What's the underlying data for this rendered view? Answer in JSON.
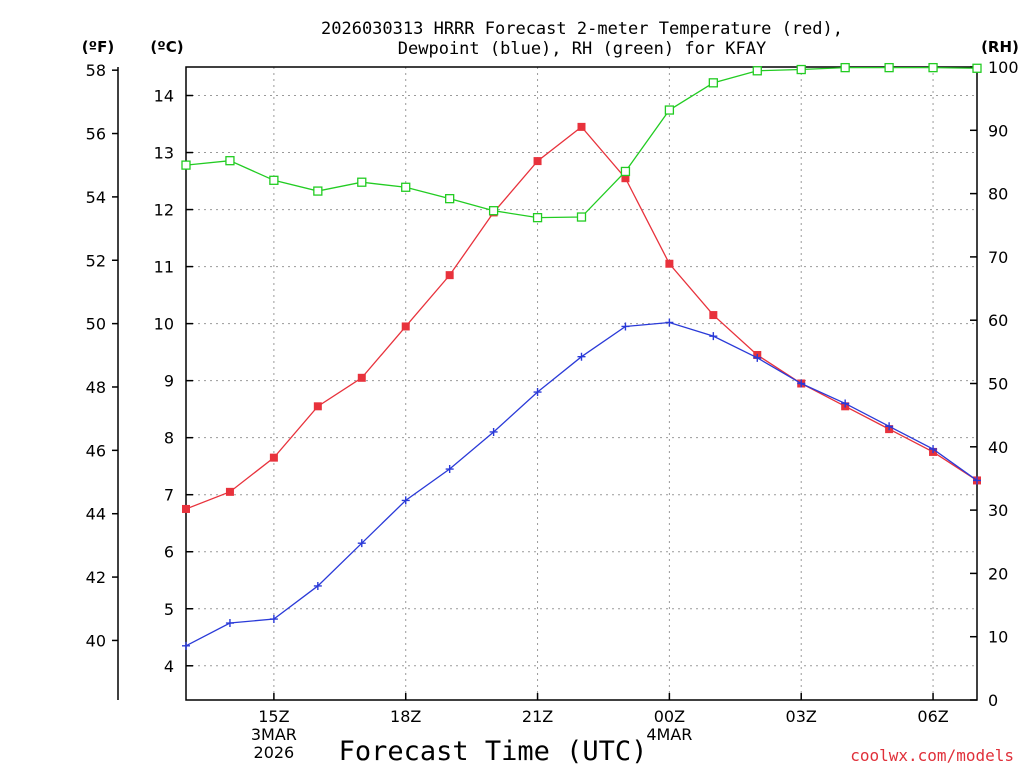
{
  "chart_data": {
    "type": "line",
    "title_line1": "2026030313 HRRR Forecast 2-meter Temperature (red),",
    "title_line2": "Dewpoint (blue), RH (green) for KFAY",
    "xlabel": "Forecast Time (UTC)",
    "credit": "coolwx.com/models",
    "units": {
      "fahrenheit": "(ºF)",
      "celsius": "(ºC)",
      "rh": "(RH)"
    },
    "x_hours": [
      13,
      14,
      15,
      16,
      17,
      18,
      19,
      20,
      21,
      22,
      23,
      24,
      25,
      26,
      27,
      28,
      29,
      30,
      31
    ],
    "xlim": [
      13,
      31
    ],
    "x_ticks": [
      {
        "hour": 15,
        "lines": [
          "15Z",
          "3MAR",
          "2026"
        ]
      },
      {
        "hour": 18,
        "lines": [
          "18Z"
        ]
      },
      {
        "hour": 21,
        "lines": [
          "21Z"
        ]
      },
      {
        "hour": 24,
        "lines": [
          "00Z",
          "4MAR"
        ]
      },
      {
        "hour": 27,
        "lines": [
          "03Z"
        ]
      },
      {
        "hour": 30,
        "lines": [
          "06Z"
        ]
      }
    ],
    "celsius_axis": {
      "ylim": [
        3.4,
        14.5
      ],
      "ticks": [
        "4",
        "5",
        "6",
        "7",
        "8",
        "9",
        "10",
        "11",
        "12",
        "13",
        "14"
      ]
    },
    "fahrenheit_ticks": [
      "40",
      "42",
      "44",
      "46",
      "48",
      "50",
      "52",
      "54",
      "56",
      "58"
    ],
    "rh_axis": {
      "ylim": [
        0,
        100
      ],
      "ticks": [
        "0",
        "10",
        "20",
        "30",
        "40",
        "50",
        "60",
        "70",
        "80",
        "90",
        "100"
      ]
    },
    "series": [
      {
        "name": "2-meter Temperature",
        "axis": "celsius",
        "color": "#e8323c",
        "marker": "filled-square",
        "values": [
          6.75,
          7.05,
          7.65,
          8.55,
          9.05,
          9.95,
          10.85,
          11.95,
          12.85,
          13.45,
          12.55,
          11.05,
          10.15,
          9.45,
          8.95,
          8.55,
          8.15,
          7.75,
          7.25
        ]
      },
      {
        "name": "Dewpoint",
        "axis": "celsius",
        "color": "#2a3ad8",
        "marker": "plus",
        "values": [
          4.35,
          4.75,
          4.82,
          5.4,
          6.15,
          6.9,
          7.45,
          8.1,
          8.8,
          9.42,
          9.95,
          10.02,
          9.78,
          9.4,
          8.95,
          8.6,
          8.2,
          7.8,
          7.25
        ]
      },
      {
        "name": "Relative Humidity",
        "axis": "rh",
        "color": "#22cc22",
        "marker": "open-square",
        "values": [
          84.5,
          85.2,
          82.1,
          80.4,
          81.8,
          81.0,
          79.2,
          77.3,
          76.2,
          76.3,
          83.5,
          93.2,
          97.5,
          99.4,
          99.6,
          99.9,
          99.9,
          99.9,
          99.8
        ]
      }
    ]
  }
}
